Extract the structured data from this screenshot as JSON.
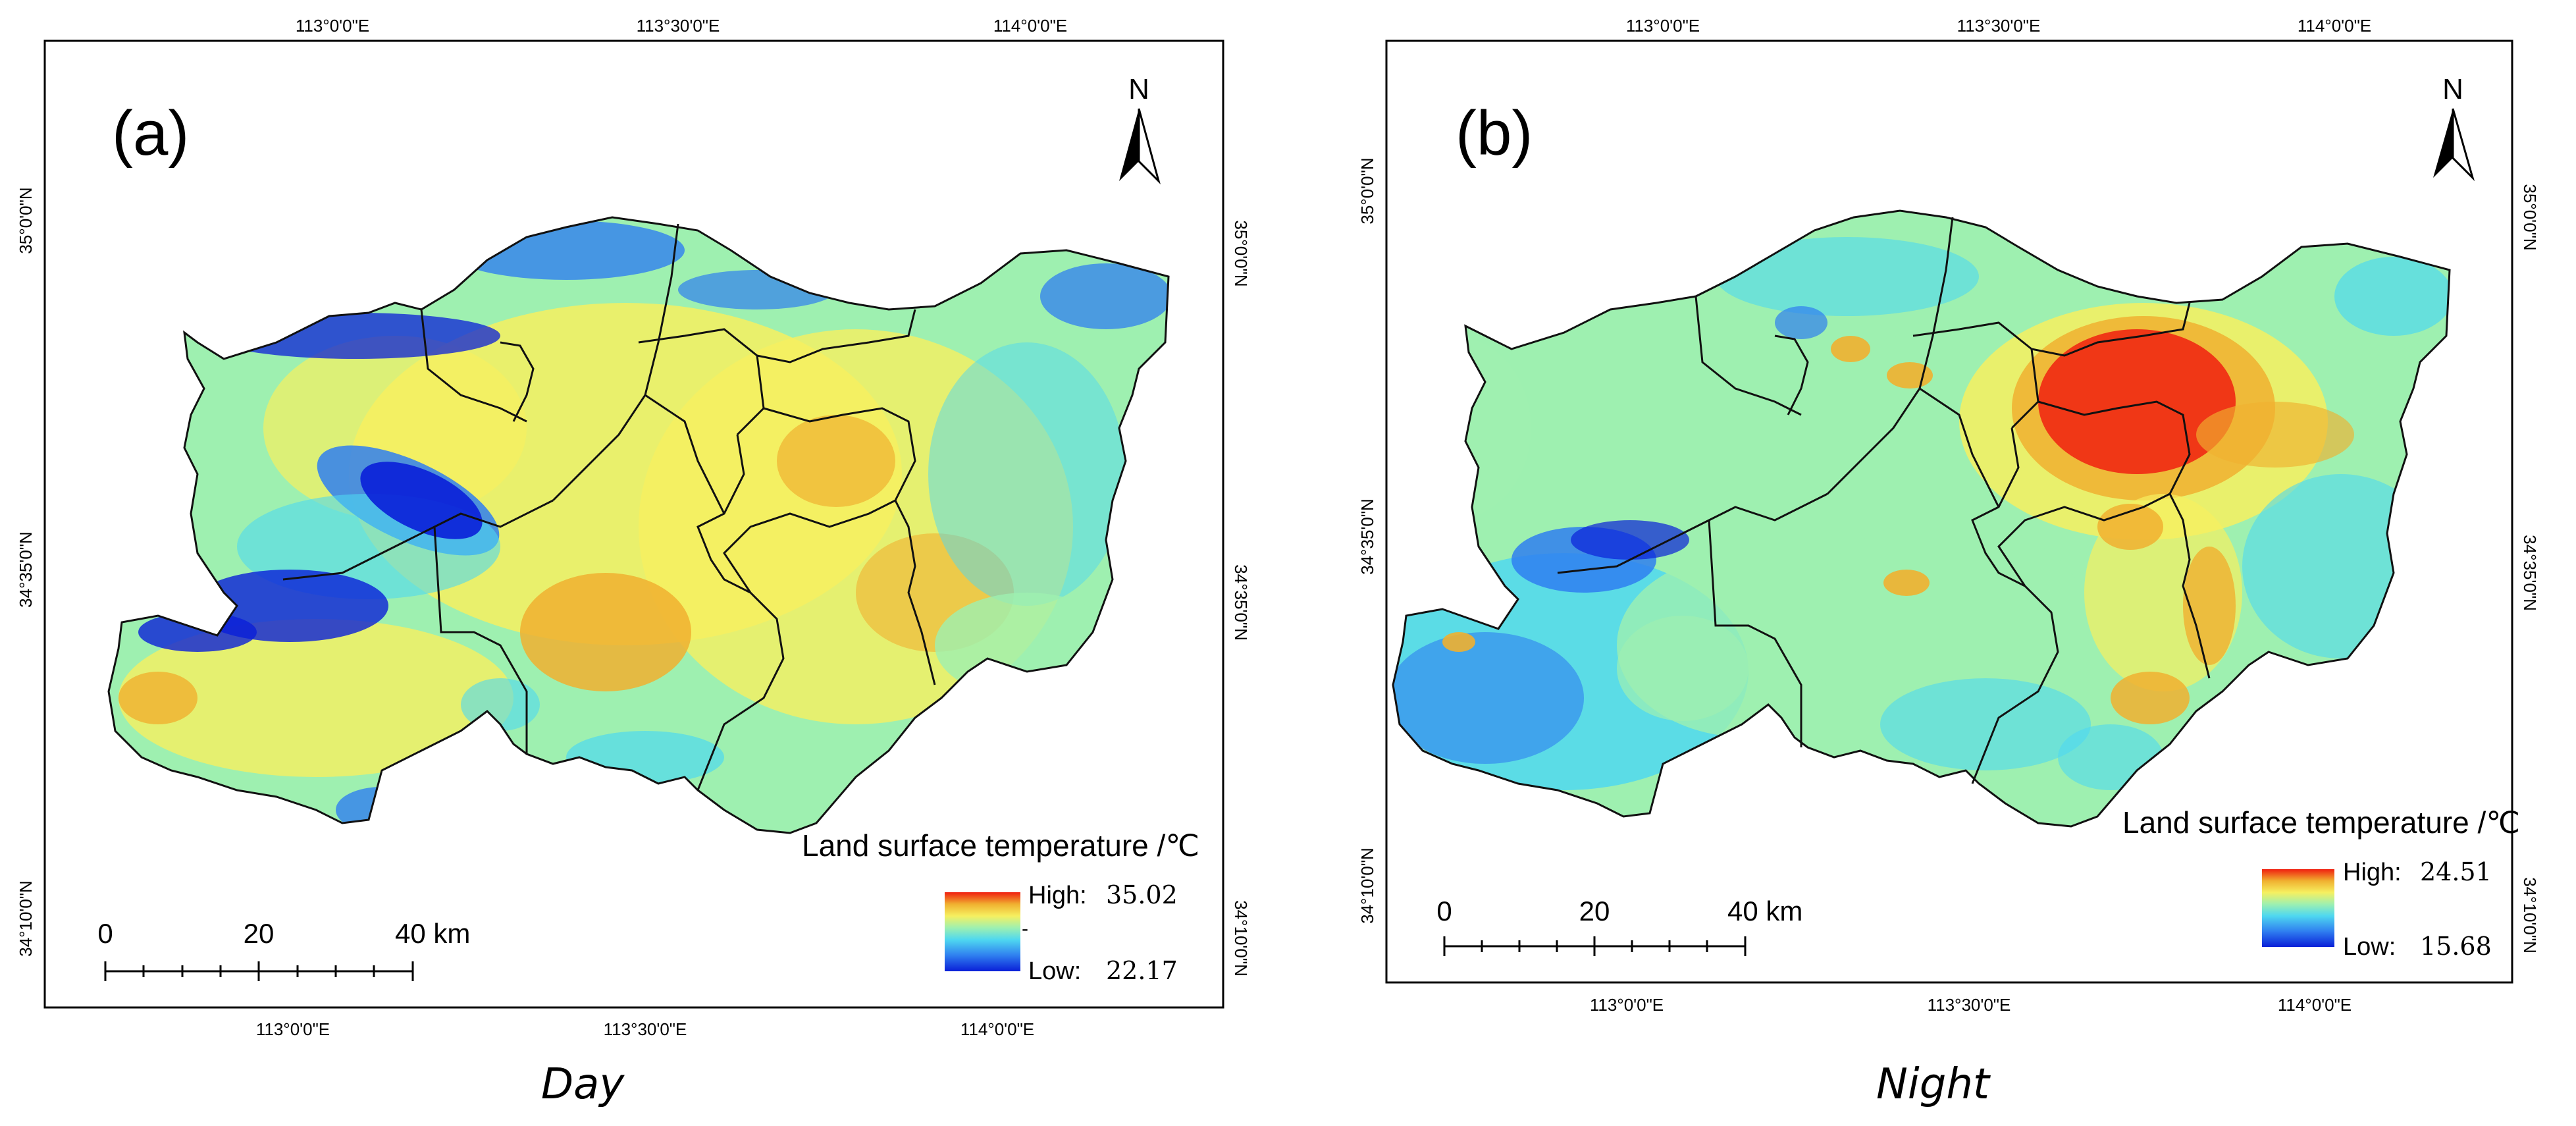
{
  "panels": [
    {
      "id": "day",
      "panel_label": "(a)",
      "caption": "Day",
      "north_label": "N",
      "top_lon_labels": [
        "113°0'0\"E",
        "113°30'0\"E",
        "114°0'0\"E"
      ],
      "bottom_lon_labels": [
        "113°0'0\"E",
        "113°30'0\"E",
        "114°0'0\"E"
      ],
      "left_lat_labels": [
        "35°0'0\"N",
        "34°35'0\"N",
        "34°10'0\"N"
      ],
      "right_lat_labels": [
        "35°0'0\"N",
        "34°35'0\"N",
        "34°10'0\"N"
      ],
      "legend": {
        "title": "Land surface temperature /℃",
        "high_label": "High:",
        "high_value": "35.02",
        "low_label": "Low:",
        "low_value": "22.17",
        "mid_tick": "-"
      },
      "scale_bar": {
        "labels": [
          "0",
          "20",
          "40 km"
        ]
      }
    },
    {
      "id": "night",
      "panel_label": "(b)",
      "caption": "Night",
      "north_label": "N",
      "top_lon_labels": [
        "113°0'0\"E",
        "113°30'0\"E",
        "114°0'0\"E"
      ],
      "bottom_lon_labels": [
        "113°0'0\"E",
        "113°30'0\"E",
        "114°0'0\"E"
      ],
      "left_lat_labels": [
        "35°0'0\"N",
        "34°35'0\"N",
        "34°10'0\"N"
      ],
      "right_lat_labels": [
        "35°0'0\"N",
        "34°35'0\"N",
        "34°10'0\"N"
      ],
      "legend": {
        "title": "Land surface temperature /℃",
        "high_label": "High:",
        "high_value": "24.51",
        "low_label": "Low:",
        "low_value": "15.68",
        "mid_tick": ""
      },
      "scale_bar": {
        "labels": [
          "0",
          "20",
          "40 km"
        ]
      }
    }
  ],
  "colors": {
    "ramp": [
      "#0a1fd8",
      "#2f7ff0",
      "#4fd8f0",
      "#9ef0b0",
      "#f6f060",
      "#f0b030",
      "#f02010"
    ],
    "frame": "#000000",
    "boundary": "#111111"
  }
}
